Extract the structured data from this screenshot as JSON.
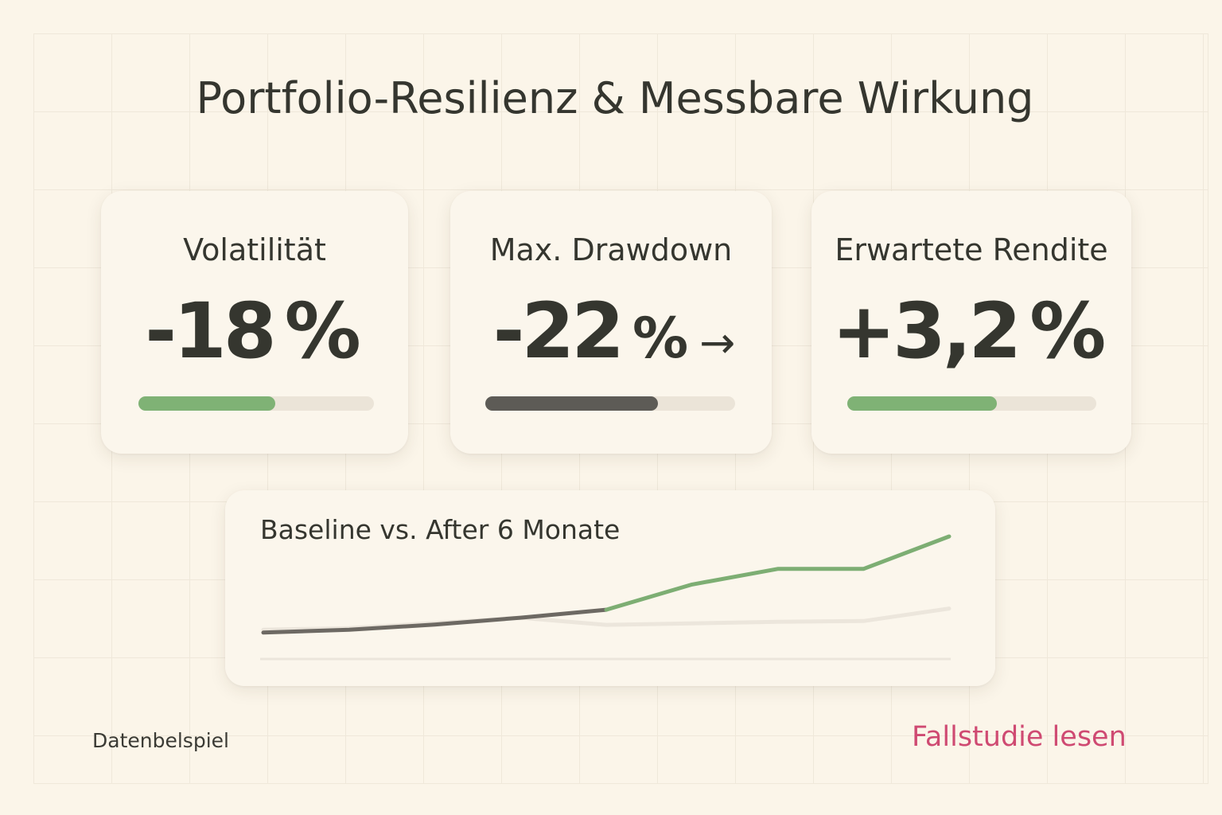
{
  "title": "Portfolio-Resilienz & Messbare Wirkung",
  "metrics": [
    {
      "label": "Volatilität",
      "value": "-18",
      "unit": "%",
      "arrow": "",
      "progress": 0.58,
      "bar_color": "#7fb275"
    },
    {
      "label": "Max. Drawdown",
      "value": "-22",
      "unit": "%",
      "arrow": "→",
      "progress": 0.69,
      "bar_color": "#5d5b56"
    },
    {
      "label": "Erwartete Rendite",
      "value": "+3,2",
      "unit": "%",
      "arrow": "",
      "progress": 0.6,
      "bar_color": "#7fb275"
    }
  ],
  "chart_data": {
    "type": "line",
    "title": "Baseline vs. After 6 Monate",
    "x": [
      0,
      1,
      2,
      3,
      4,
      5,
      6,
      7,
      8
    ],
    "series": [
      {
        "values": [
          0.12,
          0.18,
          0.4,
          0.62,
          0.32,
          0.38,
          0.45,
          0.48,
          1.0
        ],
        "color": "#ece6dc"
      },
      {
        "values": [
          0.0,
          0.12,
          0.33,
          0.62,
          0.95,
          2.0,
          2.65,
          2.65,
          4.0
        ],
        "color_before": "#6d6963",
        "color_after": "#7dae73"
      }
    ],
    "ylim": [
      -1.1,
      4.0
    ],
    "grid": false
  },
  "footnote": "Datenbelspiel",
  "cta": "Fallstudie lesen",
  "colors": {
    "background": "#fbf5e9",
    "accent_green": "#7fb275",
    "dark": "#35362f",
    "link": "#cf4a72"
  }
}
